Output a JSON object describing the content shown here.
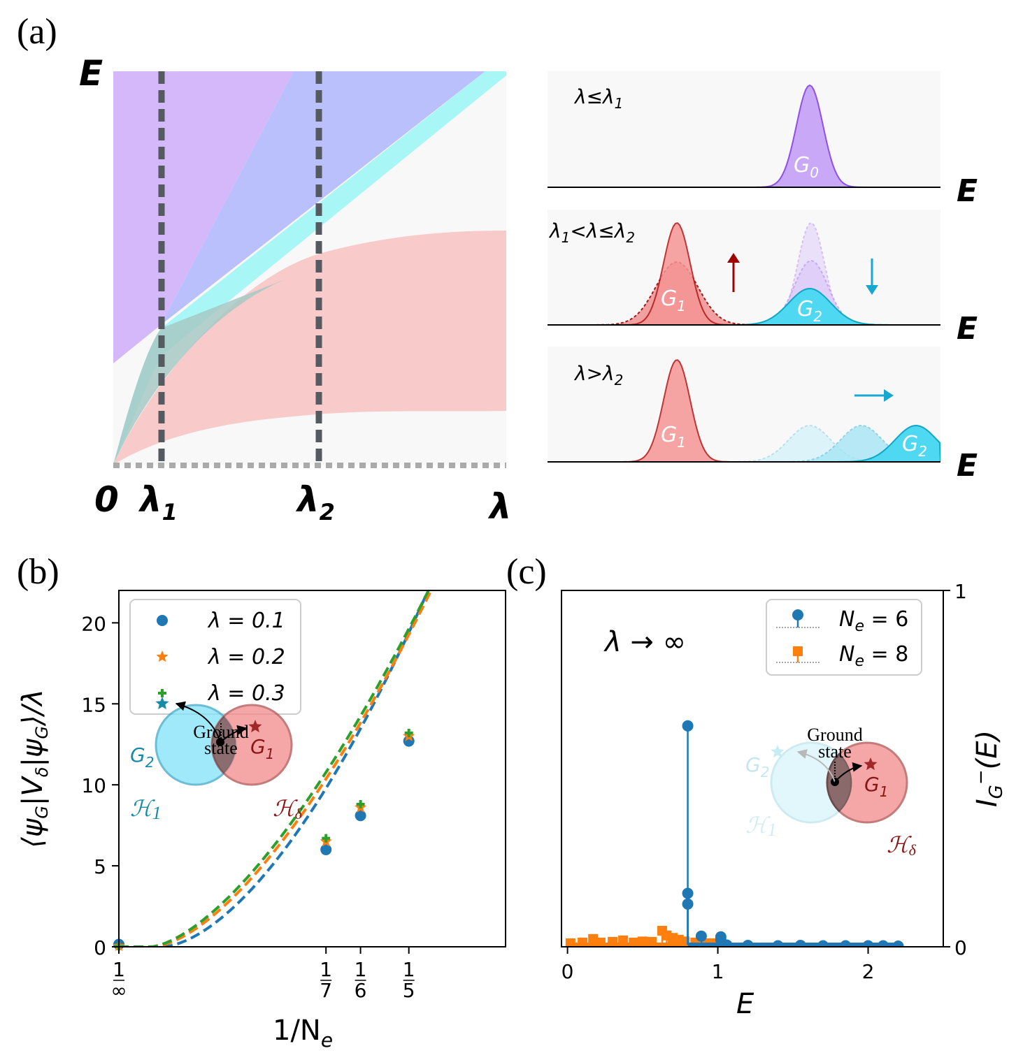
{
  "panel_labels": {
    "a": "(a)",
    "b": "(b)",
    "c": "(c)"
  },
  "panel_a": {
    "y_axis_label": "E",
    "x_axis_label": "λ",
    "x_ticks": {
      "zero": "0",
      "l1": "λ",
      "l1_sub": "1",
      "l2": "λ",
      "l2_sub": "2"
    },
    "subplots": [
      {
        "condition": "λ≤λ₁",
        "cond_main": "λ≤λ",
        "cond_sub": "1",
        "energy_label": "E",
        "peak_label": "G",
        "peak_sub": "0"
      },
      {
        "condition": "λ₁<λ≤λ₂",
        "cond_a": "λ",
        "cond_a_sub": "1",
        "cond_b": "<λ≤λ",
        "cond_b_sub": "2",
        "energy_label": "E",
        "peak1_label": "G",
        "peak1_sub": "1",
        "peak2_label": "G",
        "peak2_sub": "2"
      },
      {
        "condition": "λ>λ₂",
        "cond_main": "λ>λ",
        "cond_sub": "2",
        "energy_label": "E",
        "peak1_label": "G",
        "peak1_sub": "1",
        "peak2_label": "G",
        "peak2_sub": "2"
      }
    ],
    "colors": {
      "violet": "#c9a8f7",
      "blue": "#a9b0f9",
      "cyan": "#94f4f4",
      "red": "#f7b3b3",
      "background": "#f8f8f8"
    }
  },
  "panel_c_text": {
    "lambda_limit": "λ → ∞",
    "right_label": "I",
    "right_label_sub": "G",
    "right_label_sup": "−",
    "right_label_arg": "(E)"
  },
  "insets": {
    "ground_state_line1": "Ground",
    "ground_state_line2": "state",
    "g2": "G",
    "g2_sub": "2",
    "g1": "G",
    "g1_sub": "1",
    "h1": "ℋ",
    "h1_sub": "1",
    "hd": "ℋ",
    "hd_sub": "δ"
  },
  "chart_data": [
    {
      "type": "line",
      "id": "b",
      "title": "",
      "xlabel": "1/N_e",
      "xlabel_main": "1/N",
      "xlabel_sub": "e",
      "ylabel": "⟨ψ_G|V̂_δ|ψ_G⟩/λ",
      "ylabel_parts": {
        "open": "⟨ψ",
        "g1": "G",
        "bar1": "|",
        "v": "V",
        "d": "δ",
        "bar2": "|ψ",
        "g2": "G",
        "close": "⟩/λ"
      },
      "xlim": [
        0,
        0.2667
      ],
      "ylim": [
        0,
        22
      ],
      "x_tick_labels": [
        {
          "x": 0,
          "num": "1",
          "den": "∞"
        },
        {
          "x": 0.142857,
          "num": "1",
          "den": "7"
        },
        {
          "x": 0.166667,
          "num": "1",
          "den": "6"
        },
        {
          "x": 0.2,
          "num": "1",
          "den": "5"
        }
      ],
      "y_tick_labels": [
        "0",
        "5",
        "10",
        "15",
        "20"
      ],
      "y_ticks": [
        0,
        5,
        10,
        15,
        20
      ],
      "series": [
        {
          "name": "λ = 0.1",
          "label": "λ = 0.1",
          "color": "#1f77b4",
          "marker": "circle",
          "points": [
            [
              0,
              0.15
            ],
            [
              0.142857,
              6.0
            ],
            [
              0.166667,
              8.1
            ],
            [
              0.2,
              12.7
            ]
          ],
          "fit": {
            "x0": 0.03,
            "a": 374.0,
            "p": 1.67
          }
        },
        {
          "name": "λ = 0.2",
          "label": "λ = 0.2",
          "color": "#ff7f0e",
          "marker": "star",
          "points": [
            [
              0,
              0.05
            ],
            [
              0.142857,
              6.5
            ],
            [
              0.166667,
              8.6
            ],
            [
              0.2,
              13.0
            ]
          ],
          "fit": {
            "x0": 0.024,
            "a": 300.0,
            "p": 1.58
          }
        },
        {
          "name": "λ = 0.3",
          "label": "λ = 0.3",
          "color": "#2ca02c",
          "marker": "plus",
          "points": [
            [
              0,
              0.03
            ],
            [
              0.142857,
              6.7
            ],
            [
              0.166667,
              8.8
            ],
            [
              0.2,
              13.2
            ]
          ],
          "fit": {
            "x0": 0.022,
            "a": 285.0,
            "p": 1.55
          }
        }
      ]
    },
    {
      "type": "stem",
      "id": "c",
      "title": "",
      "xlabel": "E",
      "ylabel": "I_G^-(E)",
      "xlim": [
        -0.04,
        2.5
      ],
      "ylim": [
        0,
        1
      ],
      "x_ticks": [
        0,
        1,
        2
      ],
      "x_tick_labels": [
        "0",
        "1",
        "2"
      ],
      "y_ticks": [
        0,
        1
      ],
      "y_tick_labels": [
        "0",
        "1"
      ],
      "series": [
        {
          "name": "N_e = 6",
          "label": "N",
          "label_sub": "e",
          "label_tail": " = 6",
          "color": "#1f77b4",
          "marker": "circle",
          "points": [
            [
              0.8,
              0.62
            ],
            [
              0.8,
              0.15
            ],
            [
              0.8,
              0.12
            ],
            [
              0.89,
              0.03
            ],
            [
              1.02,
              0.028
            ],
            [
              1.02,
              0.02
            ],
            [
              1.06,
              0.005
            ],
            [
              1.2,
              0.004
            ],
            [
              1.4,
              0.003
            ],
            [
              1.55,
              0.004
            ],
            [
              1.7,
              0.003
            ],
            [
              1.85,
              0.003
            ],
            [
              2.0,
              0.003
            ],
            [
              2.1,
              0.003
            ],
            [
              2.2,
              0.002
            ]
          ]
        },
        {
          "name": "N_e = 8",
          "label": "N",
          "label_sub": "e",
          "label_tail": " = 8",
          "color": "#ff7f0e",
          "marker": "square",
          "points": [
            [
              0.02,
              0.01
            ],
            [
              0.1,
              0.012
            ],
            [
              0.17,
              0.022
            ],
            [
              0.22,
              0.012
            ],
            [
              0.3,
              0.014
            ],
            [
              0.37,
              0.018
            ],
            [
              0.44,
              0.012
            ],
            [
              0.5,
              0.015
            ],
            [
              0.56,
              0.014
            ],
            [
              0.63,
              0.045
            ],
            [
              0.66,
              0.032
            ],
            [
              0.7,
              0.025
            ],
            [
              0.74,
              0.02
            ],
            [
              0.78,
              0.015
            ],
            [
              0.85,
              0.012
            ],
            [
              0.92,
              0.01
            ],
            [
              0.98,
              0.01
            ]
          ]
        }
      ]
    }
  ]
}
